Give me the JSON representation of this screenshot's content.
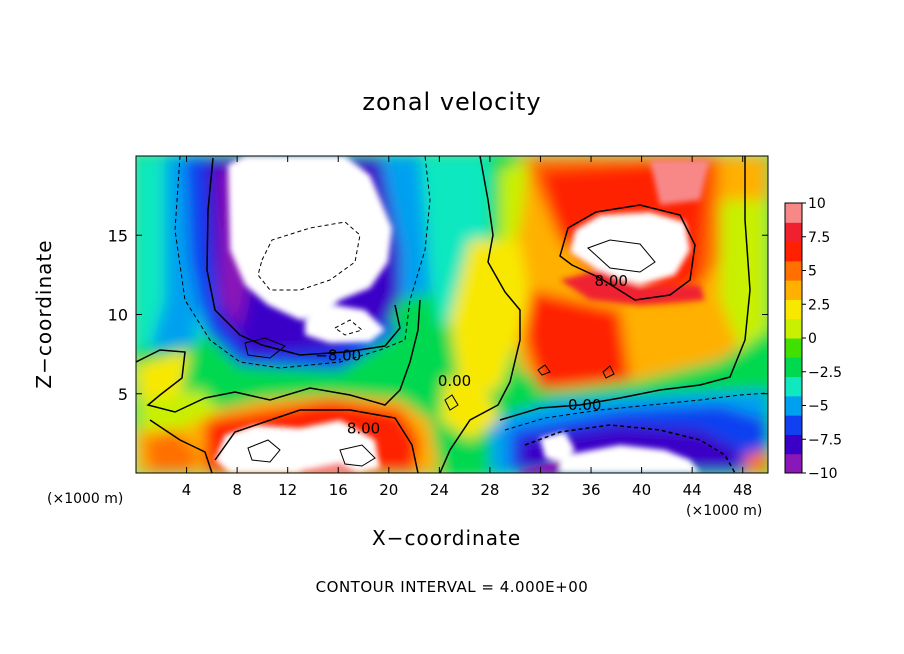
{
  "chart_data": {
    "type": "heatmap",
    "title": "zonal velocity",
    "xlabel": "X−coordinate",
    "ylabel": "Z−coordinate",
    "x_unit_label": "(×1000 m)",
    "x_ticks": [
      "4",
      "8",
      "12",
      "16",
      "20",
      "24",
      "28",
      "32",
      "36",
      "40",
      "44",
      "48"
    ],
    "x_tick_values": [
      4,
      8,
      12,
      16,
      20,
      24,
      28,
      32,
      36,
      40,
      44,
      48
    ],
    "y_ticks": [
      "5",
      "10",
      "15"
    ],
    "y_tick_values": [
      5,
      10,
      15
    ],
    "xlim": [
      0,
      50
    ],
    "ylim": [
      0,
      20
    ],
    "colorbar": {
      "ticks": [
        "10",
        "7.5",
        "5",
        "2.5",
        "0",
        "−2.5",
        "−5",
        "−7.5",
        "−10"
      ],
      "tick_values": [
        10,
        7.5,
        5,
        2.5,
        0,
        -2.5,
        -5,
        -7.5,
        -10
      ],
      "range": [
        -10,
        10
      ],
      "colors": [
        "#8a18b8",
        "#3a00c8",
        "#1040f0",
        "#00a0f0",
        "#10e8c0",
        "#00d850",
        "#40e000",
        "#c8f000",
        "#f8e800",
        "#ffb000",
        "#ff7000",
        "#ff2000",
        "#f02030",
        "#f88888"
      ]
    },
    "contour_labels": [
      {
        "text": "−8.00",
        "x": 16,
        "y": 7.4
      },
      {
        "text": "0.00",
        "x": 25.2,
        "y": 5.8
      },
      {
        "text": "8.00",
        "x": 37.6,
        "y": 12.1
      },
      {
        "text": "0.00",
        "x": 35.5,
        "y": 4.3
      },
      {
        "text": "8.00",
        "x": 18,
        "y": 2.8
      }
    ],
    "footer": "CONTOUR INTERVAL = 4.000E+00"
  }
}
